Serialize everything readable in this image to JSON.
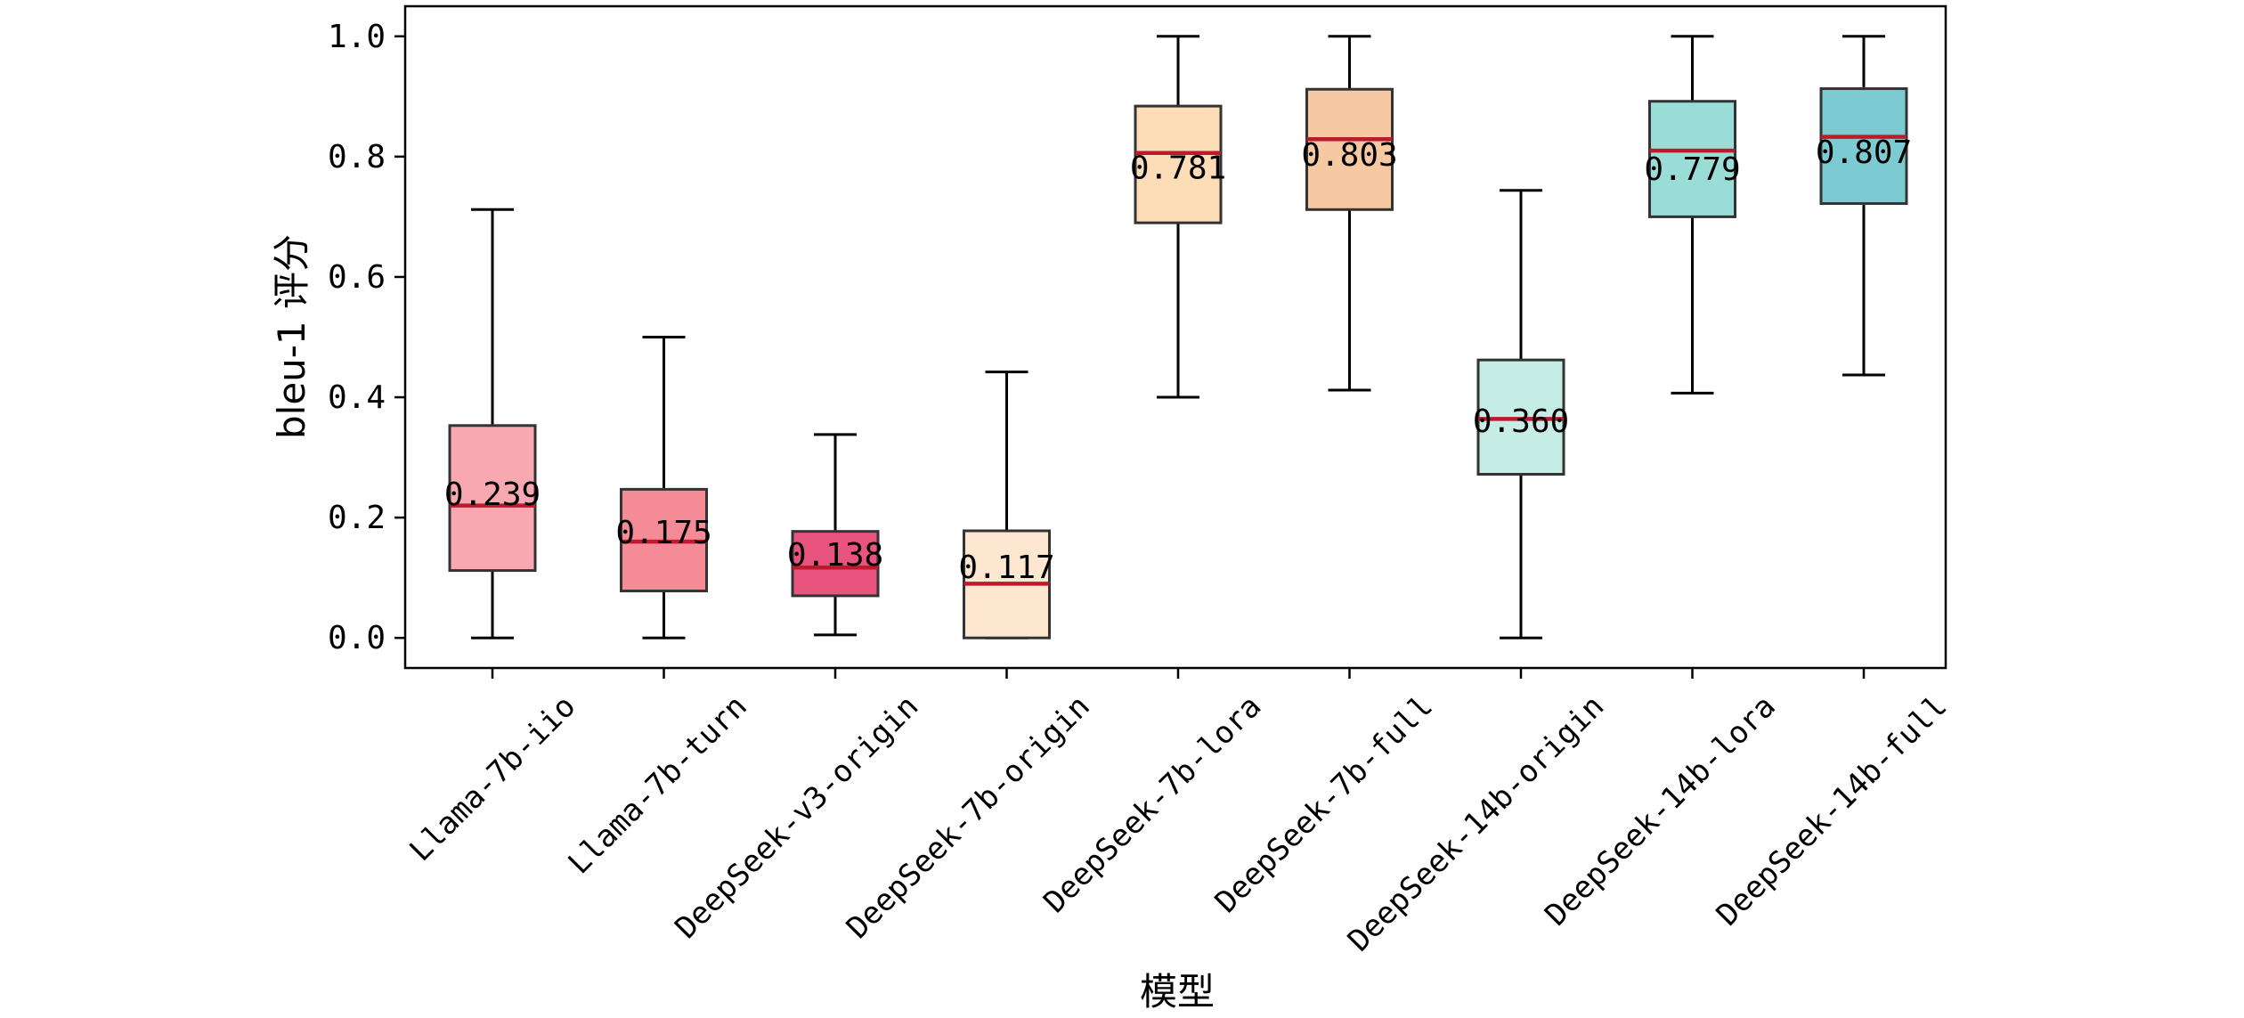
{
  "chart_data": {
    "type": "box",
    "xlabel": "模型",
    "ylabel": "bleu-1 评分",
    "ylim": [
      -0.05,
      1.05
    ],
    "yticks": [
      "0.0",
      "0.2",
      "0.4",
      "0.6",
      "0.8",
      "1.0"
    ],
    "grid": false,
    "median_color": "#c0182c",
    "categories": [
      "Llama-7b-iio",
      "Llama-7b-turn",
      "DeepSeek-v3-origin",
      "DeepSeek-7b-origin",
      "DeepSeek-7b-lora",
      "DeepSeek-7b-full",
      "DeepSeek-14b-origin",
      "DeepSeek-14b-lora",
      "DeepSeek-14b-full"
    ],
    "boxes": [
      {
        "whisker_low": 0.0,
        "q1": 0.112,
        "median": 0.22,
        "q3": 0.353,
        "whisker_high": 0.712,
        "mean_label": "0.239",
        "color": "#f7a8b1"
      },
      {
        "whisker_low": 0.0,
        "q1": 0.078,
        "median": 0.16,
        "q3": 0.247,
        "whisker_high": 0.5,
        "mean_label": "0.175",
        "color": "#f58b96"
      },
      {
        "whisker_low": 0.005,
        "q1": 0.07,
        "median": 0.117,
        "q3": 0.177,
        "whisker_high": 0.338,
        "mean_label": "0.138",
        "color": "#e8547e"
      },
      {
        "whisker_low": 0.0,
        "q1": 0.0,
        "median": 0.09,
        "q3": 0.178,
        "whisker_high": 0.442,
        "mean_label": "0.117",
        "color": "#fde7d0"
      },
      {
        "whisker_low": 0.4,
        "q1": 0.69,
        "median": 0.806,
        "q3": 0.884,
        "whisker_high": 1.0,
        "mean_label": "0.781",
        "color": "#fddcb8"
      },
      {
        "whisker_low": 0.412,
        "q1": 0.712,
        "median": 0.829,
        "q3": 0.912,
        "whisker_high": 1.0,
        "mean_label": "0.803",
        "color": "#f6c9a2"
      },
      {
        "whisker_low": 0.0,
        "q1": 0.272,
        "median": 0.364,
        "q3": 0.462,
        "whisker_high": 0.744,
        "mean_label": "0.360",
        "color": "#c5ede6"
      },
      {
        "whisker_low": 0.407,
        "q1": 0.7,
        "median": 0.81,
        "q3": 0.892,
        "whisker_high": 1.0,
        "mean_label": "0.779",
        "color": "#9addd6"
      },
      {
        "whisker_low": 0.437,
        "q1": 0.722,
        "median": 0.833,
        "q3": 0.913,
        "whisker_high": 1.0,
        "mean_label": "0.807",
        "color": "#7ccbd3"
      }
    ]
  }
}
